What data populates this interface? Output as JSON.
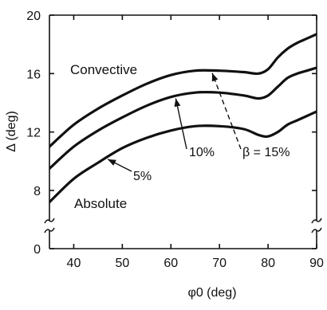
{
  "chart_data": {
    "type": "line",
    "xlabel": "φ0 (deg)",
    "ylabel": "Δ (deg)",
    "xlim": [
      35,
      90
    ],
    "ylim": [
      0,
      20
    ],
    "y_axis_break": [
      0,
      8
    ],
    "grid": false,
    "x_ticks": [
      40,
      50,
      60,
      70,
      80,
      90
    ],
    "y_ticks": [
      0,
      8,
      12,
      16,
      20
    ],
    "x_tick_labels": [
      "40",
      "50",
      "60",
      "70",
      "80",
      "90"
    ],
    "y_tick_labels": [
      "0",
      "8",
      "12",
      "16",
      "20"
    ],
    "series": [
      {
        "name": "β = 15%",
        "x": [
          35,
          40,
          45,
          50,
          55,
          60,
          65,
          70,
          75,
          78,
          80,
          82,
          84,
          86,
          88,
          90
        ],
        "y": [
          11.0,
          12.5,
          13.6,
          14.5,
          15.3,
          15.9,
          16.2,
          16.2,
          16.1,
          16.0,
          16.3,
          17.1,
          17.7,
          18.1,
          18.4,
          18.7
        ]
      },
      {
        "name": "10%",
        "x": [
          35,
          40,
          45,
          50,
          55,
          60,
          65,
          70,
          75,
          78,
          80,
          82,
          84,
          86,
          88,
          90
        ],
        "y": [
          9.5,
          11.0,
          12.1,
          13.0,
          13.8,
          14.4,
          14.7,
          14.7,
          14.5,
          14.3,
          14.5,
          15.1,
          15.7,
          16.0,
          16.2,
          16.4
        ]
      },
      {
        "name": "5%",
        "x": [
          35,
          40,
          45,
          50,
          55,
          60,
          65,
          70,
          75,
          78,
          80,
          82,
          84,
          86,
          88,
          90
        ],
        "y": [
          7.2,
          8.8,
          9.9,
          10.9,
          11.6,
          12.1,
          12.4,
          12.4,
          12.2,
          11.8,
          11.7,
          12.0,
          12.5,
          12.8,
          13.1,
          13.4
        ]
      }
    ],
    "annotations": {
      "upper_region": "Convective",
      "lower_region": "Absolute"
    }
  }
}
